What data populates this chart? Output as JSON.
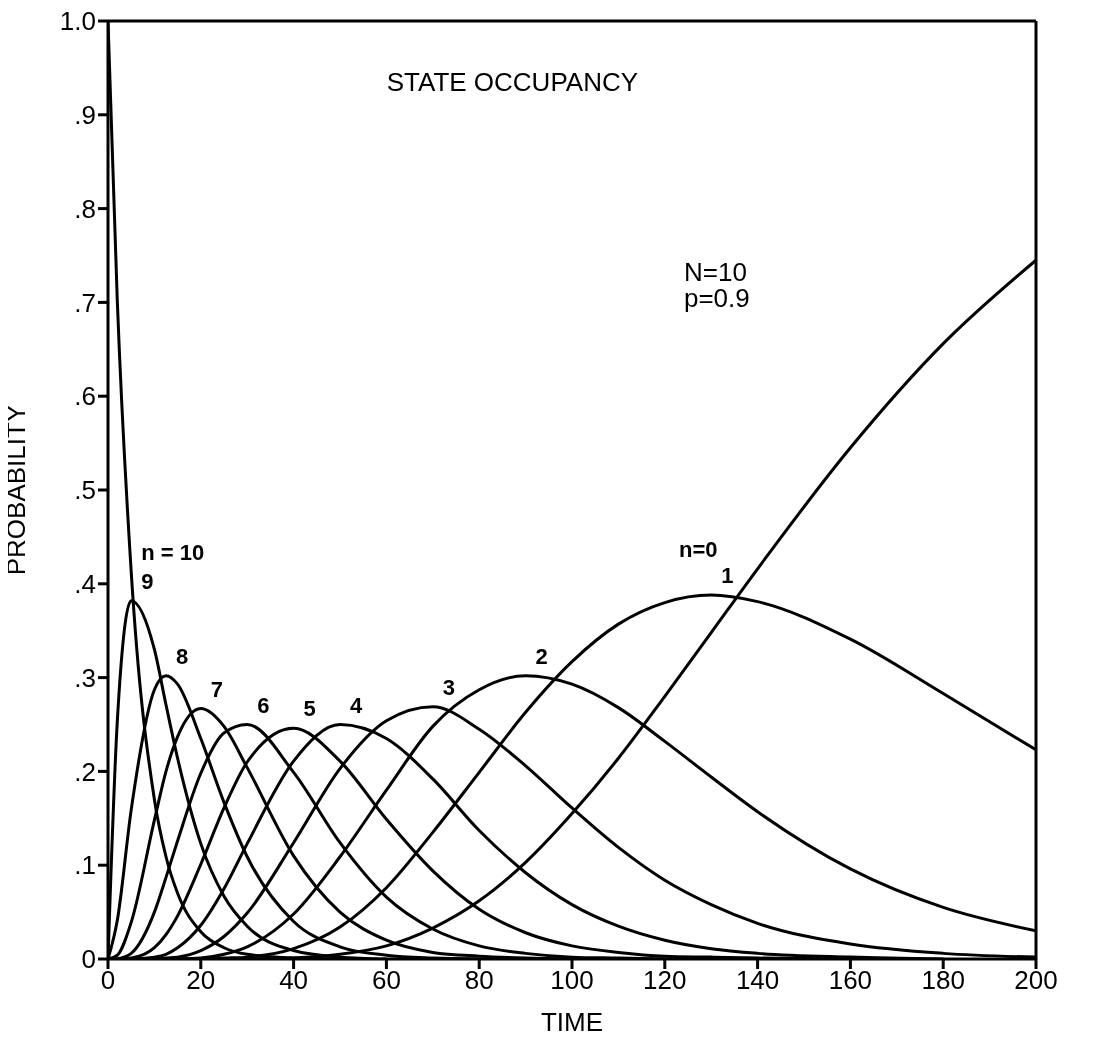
{
  "chart_data": {
    "type": "line",
    "title": "STATE OCCUPANCY",
    "xlabel": "TIME",
    "ylabel": "PROBABILITY",
    "annotations": [
      "N=10",
      "p=0.9"
    ],
    "x": [
      0,
      2,
      5,
      10,
      12.5,
      15,
      20,
      25,
      30,
      40,
      50,
      60,
      70,
      80,
      90,
      100,
      110,
      120,
      130,
      140,
      160,
      180,
      200
    ],
    "xlim": [
      0,
      200
    ],
    "xticks": [
      0,
      20,
      40,
      60,
      80,
      100,
      120,
      140,
      160,
      180,
      200
    ],
    "ylim": [
      0,
      1
    ],
    "yticks": [
      {
        "value": 0,
        "label": "0"
      },
      {
        "value": 0.1,
        "label": ".1"
      },
      {
        "value": 0.2,
        "label": ".2"
      },
      {
        "value": 0.3,
        "label": ".3"
      },
      {
        "value": 0.4,
        "label": ".4"
      },
      {
        "value": 0.5,
        "label": ".5"
      },
      {
        "value": 0.6,
        "label": ".6"
      },
      {
        "value": 0.7,
        "label": ".7"
      },
      {
        "value": 0.8,
        "label": ".8"
      },
      {
        "value": 0.9,
        "label": ".9"
      },
      {
        "value": 1,
        "label": "1.0"
      }
    ],
    "grid": false,
    "legend": false,
    "series": [
      {
        "name": "n = 10",
        "color": "#000000",
        "values": [
          1,
          0.702,
          0.413,
          0.17,
          0.109,
          0.07,
          0.029,
          0.012,
          0.005,
          0.001,
          0,
          null,
          null,
          null,
          null,
          null,
          null,
          null,
          null,
          null,
          null,
          null,
          null
        ]
      },
      {
        "name": "9",
        "color": "#000000",
        "values": [
          0,
          0.253,
          0.382,
          0.33,
          0.271,
          0.214,
          0.123,
          0.067,
          0.035,
          0.009,
          0.002,
          0,
          null,
          null,
          null,
          null,
          null,
          null,
          null,
          null,
          null,
          null,
          null
        ]
      },
      {
        "name": "8",
        "color": "#000000",
        "values": [
          0,
          0.041,
          0.159,
          0.287,
          0.302,
          0.293,
          0.235,
          0.167,
          0.109,
          0.04,
          0.013,
          0.004,
          0.001,
          0,
          null,
          null,
          null,
          null,
          null,
          null,
          null,
          null,
          null
        ]
      },
      {
        "name": "7",
        "color": "#000000",
        "values": [
          0,
          0.004,
          0.039,
          0.148,
          0.2,
          0.237,
          0.267,
          0.248,
          0.204,
          0.11,
          0.05,
          0.02,
          0.007,
          0.003,
          0.001,
          0,
          null,
          null,
          null,
          null,
          null,
          null,
          null
        ]
      },
      {
        "name": "6",
        "color": "#000000",
        "values": [
          null,
          0,
          0.006,
          0.05,
          0.087,
          0.126,
          0.198,
          0.241,
          0.25,
          0.199,
          0.124,
          0.066,
          0.032,
          0.014,
          0.006,
          0.002,
          0.001,
          0,
          null,
          null,
          null,
          null,
          null
        ]
      },
      {
        "name": "5",
        "color": "#000000",
        "values": [
          null,
          0,
          0.001,
          0.012,
          0.026,
          0.046,
          0.101,
          0.161,
          0.21,
          0.246,
          0.211,
          0.149,
          0.094,
          0.053,
          0.028,
          0.014,
          0.007,
          0.003,
          0.002,
          0.001,
          0,
          null,
          null
        ]
      },
      {
        "name": "4",
        "color": "#000000",
        "values": [
          null,
          null,
          0,
          0.002,
          0.005,
          0.012,
          0.036,
          0.075,
          0.123,
          0.211,
          0.25,
          0.235,
          0.192,
          0.137,
          0.092,
          0.058,
          0.035,
          0.02,
          0.011,
          0.006,
          0.002,
          0,
          null
        ]
      },
      {
        "name": "3",
        "color": "#000000",
        "values": [
          null,
          null,
          null,
          0,
          0.001,
          0.002,
          0.009,
          0.024,
          0.049,
          0.124,
          0.203,
          0.254,
          0.269,
          0.245,
          0.206,
          0.161,
          0.119,
          0.084,
          0.058,
          0.038,
          0.016,
          0.006,
          0.002
        ]
      },
      {
        "name": "2",
        "color": "#000000",
        "values": [
          null,
          null,
          null,
          null,
          null,
          0,
          0.001,
          0.005,
          0.013,
          0.048,
          0.109,
          0.18,
          0.248,
          0.287,
          0.302,
          0.293,
          0.268,
          0.232,
          0.194,
          0.157,
          0.096,
          0.055,
          0.03
        ]
      },
      {
        "name": "1",
        "color": "#000000",
        "values": [
          null,
          null,
          null,
          null,
          null,
          null,
          0,
          0.001,
          0.002,
          0.011,
          0.034,
          0.076,
          0.135,
          0.199,
          0.263,
          0.317,
          0.357,
          0.38,
          0.388,
          0.381,
          0.341,
          0.283,
          0.223
        ]
      },
      {
        "name": "n=0",
        "color": "#000000",
        "values": [
          null,
          null,
          null,
          null,
          null,
          null,
          null,
          null,
          0,
          0.001,
          0.005,
          0.014,
          0.033,
          0.062,
          0.103,
          0.155,
          0.214,
          0.28,
          0.348,
          0.416,
          0.545,
          0.656,
          0.745
        ]
      }
    ]
  }
}
